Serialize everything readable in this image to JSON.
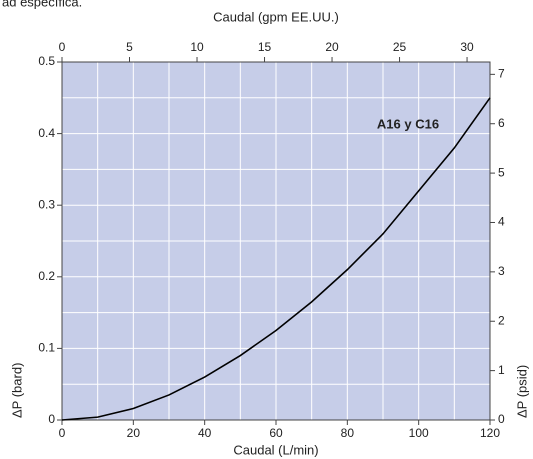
{
  "chart_data": {
    "type": "line",
    "note": "ad específica.",
    "xlabel": "Caudal (L/min)",
    "x2label": "Caudal (gpm EE.UU.)",
    "ylabel": "ΔP (bard)",
    "y2label": "ΔP (psid)",
    "annotation": "A16 y C16",
    "x": [
      0,
      10,
      20,
      30,
      40,
      50,
      60,
      70,
      80,
      90,
      100,
      110,
      120
    ],
    "series": [
      {
        "name": "A16 y C16",
        "color": "#000000",
        "values": [
          0,
          0.004,
          0.016,
          0.035,
          0.06,
          0.09,
          0.125,
          0.165,
          0.21,
          0.26,
          0.32,
          0.38,
          0.45
        ]
      }
    ],
    "xlim": [
      0,
      120
    ],
    "xticks": [
      0,
      20,
      40,
      60,
      80,
      100,
      120
    ],
    "x2lim": [
      0,
      31.7
    ],
    "x2ticks": [
      0,
      5,
      10,
      15,
      20,
      25,
      30
    ],
    "ylim": [
      0,
      0.5
    ],
    "yticks": [
      0,
      0.1,
      0.2,
      0.3,
      0.4,
      0.5
    ],
    "y2lim": [
      0,
      7.25
    ],
    "y2ticks": [
      0,
      1,
      2,
      3,
      4,
      5,
      6,
      7
    ],
    "xgrid": [
      10,
      20,
      30,
      40,
      50,
      60,
      70,
      80,
      90,
      100,
      110
    ],
    "ygrid": [
      0.05,
      0.1,
      0.15,
      0.2,
      0.25,
      0.3,
      0.35,
      0.4,
      0.45
    ],
    "background": "#c6cde8",
    "grid": true
  }
}
